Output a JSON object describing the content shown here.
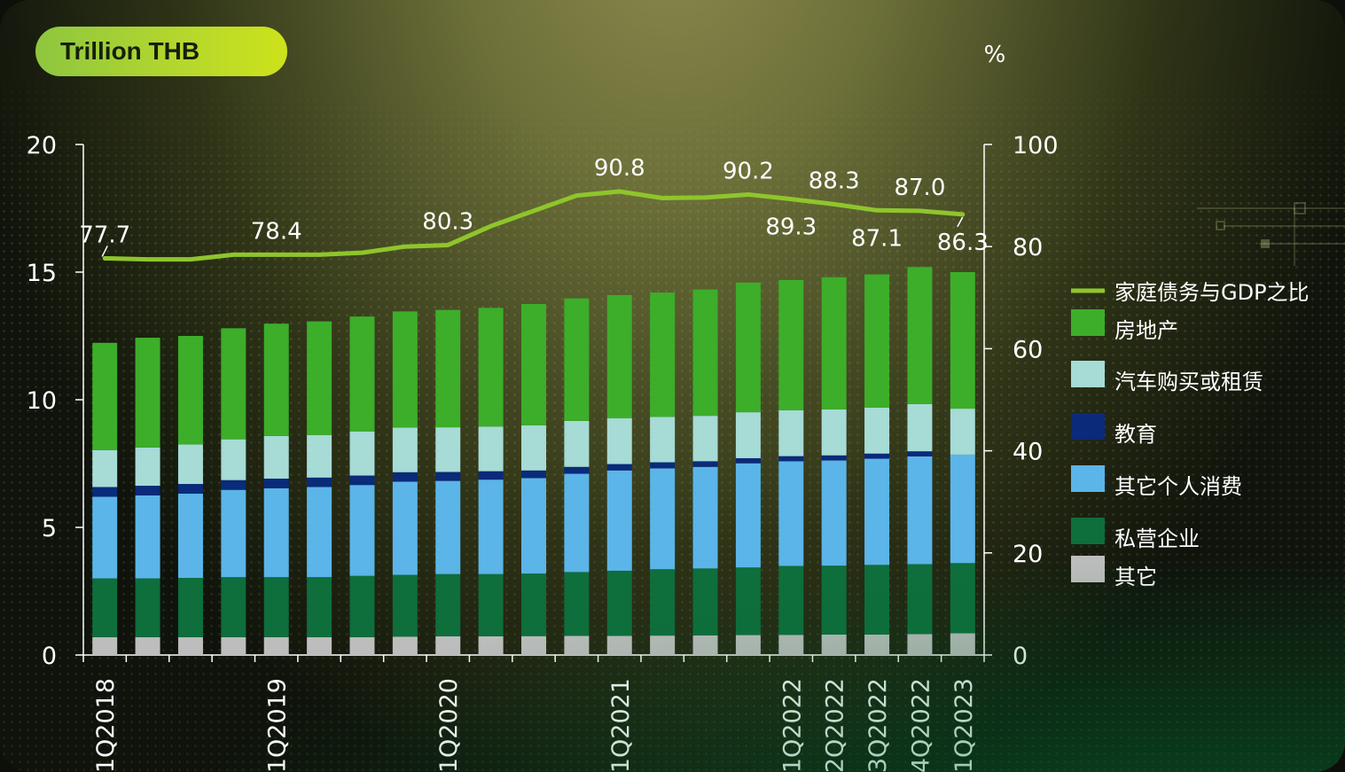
{
  "chart_data": {
    "type": "bar",
    "left_axis_unit": "Trillion THB",
    "right_axis_unit": "%",
    "yleft_ticks": [
      "0",
      "5",
      "10",
      "15",
      "20"
    ],
    "yleft_lim": [
      0,
      20
    ],
    "yright_ticks": [
      "0",
      "20",
      "40",
      "60",
      "80",
      "100"
    ],
    "yright_lim": [
      0,
      100
    ],
    "categories": [
      "1Q2018",
      "2Q2018",
      "3Q2018",
      "4Q2018",
      "1Q2019",
      "2Q2019",
      "3Q2019",
      "4Q2019",
      "1Q2020",
      "2Q2020",
      "3Q2020",
      "4Q2020",
      "1Q2021",
      "2Q2021",
      "3Q2021",
      "4Q2021",
      "1Q2022",
      "2Q2022",
      "3Q2022",
      "4Q2022",
      "1Q2023"
    ],
    "x_tick_labels": [
      "1Q2018",
      "",
      "",
      "",
      "1Q2019",
      "",
      "",
      "",
      "1Q2020",
      "",
      "",
      "",
      "1Q2021",
      "",
      "",
      "",
      "1Q2022",
      "2Q2022",
      "3Q2022",
      "4Q2022",
      "1Q2023"
    ],
    "stacked_series": [
      {
        "name": "其它",
        "color": "#bdbdbd",
        "values": [
          0.7,
          0.7,
          0.7,
          0.7,
          0.7,
          0.7,
          0.7,
          0.72,
          0.73,
          0.73,
          0.74,
          0.75,
          0.75,
          0.76,
          0.77,
          0.78,
          0.79,
          0.8,
          0.8,
          0.82,
          0.85
        ]
      },
      {
        "name": "私营企业",
        "color": "#0e6e3c",
        "values": [
          2.3,
          2.3,
          2.32,
          2.35,
          2.35,
          2.35,
          2.4,
          2.42,
          2.44,
          2.44,
          2.45,
          2.5,
          2.55,
          2.6,
          2.62,
          2.65,
          2.7,
          2.7,
          2.73,
          2.74,
          2.75
        ]
      },
      {
        "name": "其它个人消费",
        "color": "#5bb5e8",
        "values": [
          3.2,
          3.25,
          3.3,
          3.42,
          3.48,
          3.53,
          3.56,
          3.65,
          3.65,
          3.7,
          3.74,
          3.85,
          3.93,
          3.95,
          3.98,
          4.08,
          4.1,
          4.12,
          4.16,
          4.22,
          4.25
        ]
      },
      {
        "name": "教育",
        "color": "#0a2a7a",
        "values": [
          0.38,
          0.38,
          0.38,
          0.38,
          0.38,
          0.37,
          0.37,
          0.37,
          0.35,
          0.33,
          0.3,
          0.27,
          0.25,
          0.24,
          0.22,
          0.2,
          0.2,
          0.2,
          0.2,
          0.2,
          0.0
        ]
      },
      {
        "name": "汽车购买或租赁",
        "color": "#a6dbd6",
        "values": [
          1.45,
          1.5,
          1.55,
          1.6,
          1.67,
          1.67,
          1.73,
          1.75,
          1.75,
          1.75,
          1.77,
          1.8,
          1.8,
          1.78,
          1.78,
          1.8,
          1.8,
          1.8,
          1.8,
          1.85,
          1.8
        ]
      },
      {
        "name": "房地产",
        "color": "#3cae2a",
        "values": [
          4.2,
          4.3,
          4.25,
          4.35,
          4.4,
          4.45,
          4.5,
          4.55,
          4.6,
          4.65,
          4.75,
          4.8,
          4.82,
          4.87,
          4.95,
          5.08,
          5.1,
          5.18,
          5.22,
          5.37,
          5.35
        ]
      }
    ],
    "line_series": {
      "name": "家庭债务与GDP之比",
      "color": "#8fc52c",
      "axis": "right",
      "values": [
        77.7,
        77.5,
        77.5,
        78.4,
        78.4,
        78.4,
        78.8,
        80.0,
        80.3,
        84.0,
        87.0,
        90.0,
        90.8,
        89.5,
        89.6,
        90.2,
        89.3,
        88.3,
        87.1,
        87.0,
        86.3
      ]
    },
    "line_labels": [
      {
        "index": 0,
        "text": "77.7",
        "pos": "above"
      },
      {
        "index": 4,
        "text": "78.4",
        "pos": "above"
      },
      {
        "index": 8,
        "text": "80.3",
        "pos": "above"
      },
      {
        "index": 12,
        "text": "90.8",
        "pos": "above"
      },
      {
        "index": 15,
        "text": "90.2",
        "pos": "above"
      },
      {
        "index": 16,
        "text": "89.3",
        "pos": "below"
      },
      {
        "index": 17,
        "text": "88.3",
        "pos": "above"
      },
      {
        "index": 18,
        "text": "87.1",
        "pos": "below"
      },
      {
        "index": 19,
        "text": "87.0",
        "pos": "above"
      },
      {
        "index": 20,
        "text": "86.3",
        "pos": "below"
      }
    ],
    "legend": {
      "placement": "right",
      "items": [
        {
          "name": "家庭债务与GDP之比",
          "kind": "line",
          "color": "#8fc52c"
        },
        {
          "name": "房地产",
          "kind": "box",
          "color": "#3cae2a"
        },
        {
          "name": "汽车购买或租赁",
          "kind": "box",
          "color": "#a6dbd6"
        },
        {
          "name": "教育",
          "kind": "box",
          "color": "#0a2a7a"
        },
        {
          "name": "其它个人消费",
          "kind": "box",
          "color": "#5bb5e8"
        },
        {
          "name": "私营企业",
          "kind": "box",
          "color": "#0e6e3c"
        },
        {
          "name": "其它",
          "kind": "box",
          "color": "#bdbdbd"
        }
      ]
    }
  }
}
